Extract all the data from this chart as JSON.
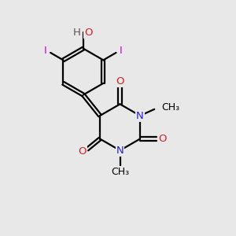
{
  "background_color": "#e8e8e8",
  "bond_color": "#000000",
  "bond_width": 1.6,
  "dbo": 0.08,
  "figsize": [
    3.0,
    3.0
  ],
  "dpi": 100,
  "colors": {
    "C": "#000000",
    "N": "#2222cc",
    "O": "#cc2222",
    "I": "#cc00cc",
    "H": "#555555",
    "bg": "#e8e8e8"
  },
  "fontsize": 9.5
}
